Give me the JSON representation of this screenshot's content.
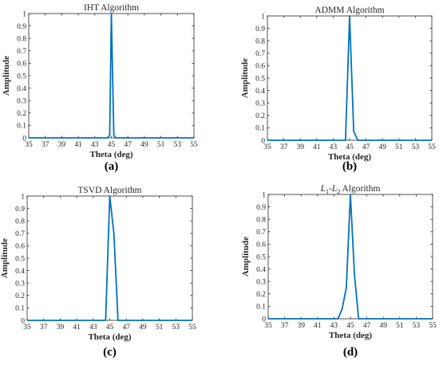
{
  "panels": [
    {
      "title": "IHT Algorithm",
      "title_rich": false,
      "caption": "(a)"
    },
    {
      "title": "ADMM Algorithm",
      "title_rich": false,
      "caption": "(b)"
    },
    {
      "title": "TSVD Algorithm",
      "title_rich": false,
      "caption": "(c)"
    },
    {
      "title": "L1-L2 Algorithm",
      "title_rich": true,
      "caption": "(d)"
    }
  ],
  "chart_data": [
    {
      "type": "line",
      "title": "IHT Algorithm",
      "xlabel": "Theta (deg)",
      "ylabel": "Amplitude",
      "xlim": [
        35,
        55
      ],
      "ylim": [
        0,
        1
      ],
      "xticks": [
        35,
        37,
        39,
        41,
        43,
        45,
        47,
        49,
        51,
        53,
        55
      ],
      "yticks": [
        0,
        0.1,
        0.2,
        0.3,
        0.4,
        0.5,
        0.6,
        0.7,
        0.8,
        0.9,
        1
      ],
      "grid": false,
      "color": "#0072BD",
      "x": [
        35,
        44.5,
        44.8,
        45,
        45.3,
        45.5,
        55
      ],
      "y": [
        0,
        0,
        0.02,
        1,
        0.02,
        0,
        0
      ]
    },
    {
      "type": "line",
      "title": "ADMM Algorithm",
      "xlabel": "Theta (deg)",
      "ylabel": "Amplitude",
      "xlim": [
        35,
        55
      ],
      "ylim": [
        0,
        1
      ],
      "xticks": [
        35,
        37,
        39,
        41,
        43,
        45,
        47,
        49,
        51,
        53,
        55
      ],
      "yticks": [
        0,
        0.1,
        0.2,
        0.3,
        0.4,
        0.5,
        0.6,
        0.7,
        0.8,
        0.9,
        1
      ],
      "grid": false,
      "color": "#0072BD",
      "x": [
        35,
        44.5,
        45,
        45.5,
        46,
        55
      ],
      "y": [
        0,
        0,
        1,
        0.07,
        0,
        0
      ]
    },
    {
      "type": "line",
      "title": "TSVD Algorithm",
      "xlabel": "Theta (deg)",
      "ylabel": "Amplitude",
      "xlim": [
        35,
        55
      ],
      "ylim": [
        0,
        1
      ],
      "xticks": [
        35,
        37,
        39,
        41,
        43,
        45,
        47,
        49,
        51,
        53,
        55
      ],
      "yticks": [
        0,
        0.1,
        0.2,
        0.3,
        0.4,
        0.5,
        0.6,
        0.7,
        0.8,
        0.9,
        1
      ],
      "grid": false,
      "color": "#0072BD",
      "x": [
        35,
        44.5,
        45,
        45.5,
        46,
        55
      ],
      "y": [
        0,
        0,
        1,
        0.7,
        0,
        0
      ]
    },
    {
      "type": "line",
      "title": "L1-L2 Algorithm",
      "xlabel": "Theta (deg)",
      "ylabel": "Amplitude",
      "xlim": [
        35,
        55
      ],
      "ylim": [
        0,
        1
      ],
      "xticks": [
        35,
        37,
        39,
        41,
        43,
        45,
        47,
        49,
        51,
        53,
        55
      ],
      "yticks": [
        0,
        0.1,
        0.2,
        0.3,
        0.4,
        0.5,
        0.6,
        0.7,
        0.8,
        0.9,
        1
      ],
      "grid": false,
      "color": "#0072BD",
      "x": [
        35,
        43.5,
        44,
        44.5,
        45,
        45.5,
        46,
        55
      ],
      "y": [
        0,
        0,
        0.08,
        0.25,
        1,
        0.35,
        0,
        0
      ]
    }
  ]
}
